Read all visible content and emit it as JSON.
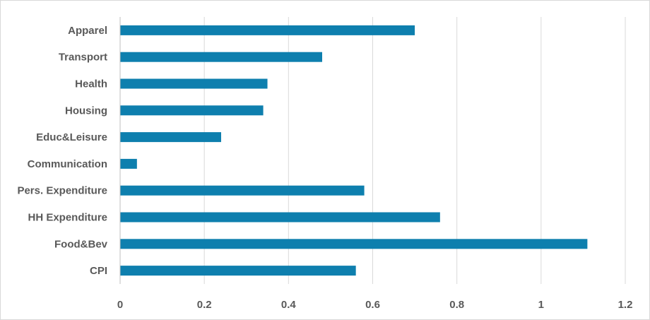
{
  "chart_data": {
    "type": "bar",
    "orientation": "horizontal",
    "title": "",
    "xlabel": "",
    "ylabel": "",
    "categories": [
      "CPI",
      "Food&Bev",
      "HH Expenditure",
      "Pers. Expenditure",
      "Communication",
      "Educ&Leisure",
      "Housing",
      "Health",
      "Transport",
      "Apparel"
    ],
    "values": [
      0.56,
      1.11,
      0.76,
      0.58,
      0.04,
      0.24,
      0.34,
      0.35,
      0.48,
      0.7
    ],
    "xlim": [
      0,
      1.2
    ],
    "xticks": [
      "0",
      "0.2",
      "0.4",
      "0.6",
      "0.8",
      "1",
      "1.2"
    ],
    "grid": "vertical",
    "legend": "none",
    "colors": {
      "bar": "#0e7fae",
      "grid": "#d9d9d9",
      "axis": "#bfbfbf",
      "text": "#595959"
    }
  }
}
